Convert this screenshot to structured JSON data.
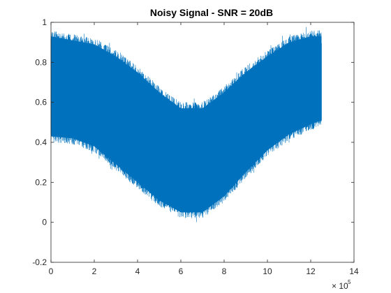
{
  "chart_data": {
    "type": "line",
    "title": "Noisy Signal - SNR = 20dB",
    "xlabel": "",
    "ylabel": "",
    "xlim": [
      0,
      14
    ],
    "ylim": [
      -0.2,
      1
    ],
    "x_multiplier_base": "× 10",
    "x_multiplier_exp": "5",
    "x_ticks": [
      "0",
      "2",
      "4",
      "6",
      "8",
      "10",
      "12",
      "14"
    ],
    "y_ticks": [
      "-0.2",
      "0",
      "0.2",
      "0.4",
      "0.6",
      "0.8",
      "1"
    ],
    "grid": false,
    "series": [
      {
        "color": "#0072BD",
        "x_range": [
          0,
          12.5
        ],
        "envelope_x": [
          0,
          1,
          2,
          3,
          4,
          5,
          6,
          7,
          8,
          9,
          10,
          11,
          12,
          12.5
        ],
        "upper": [
          0.96,
          0.94,
          0.92,
          0.86,
          0.78,
          0.68,
          0.6,
          0.6,
          0.68,
          0.78,
          0.86,
          0.93,
          0.96,
          0.96
        ],
        "lower": [
          0.4,
          0.39,
          0.35,
          0.26,
          0.17,
          0.08,
          0.02,
          0.02,
          0.1,
          0.22,
          0.33,
          0.41,
          0.46,
          0.48
        ]
      }
    ]
  }
}
